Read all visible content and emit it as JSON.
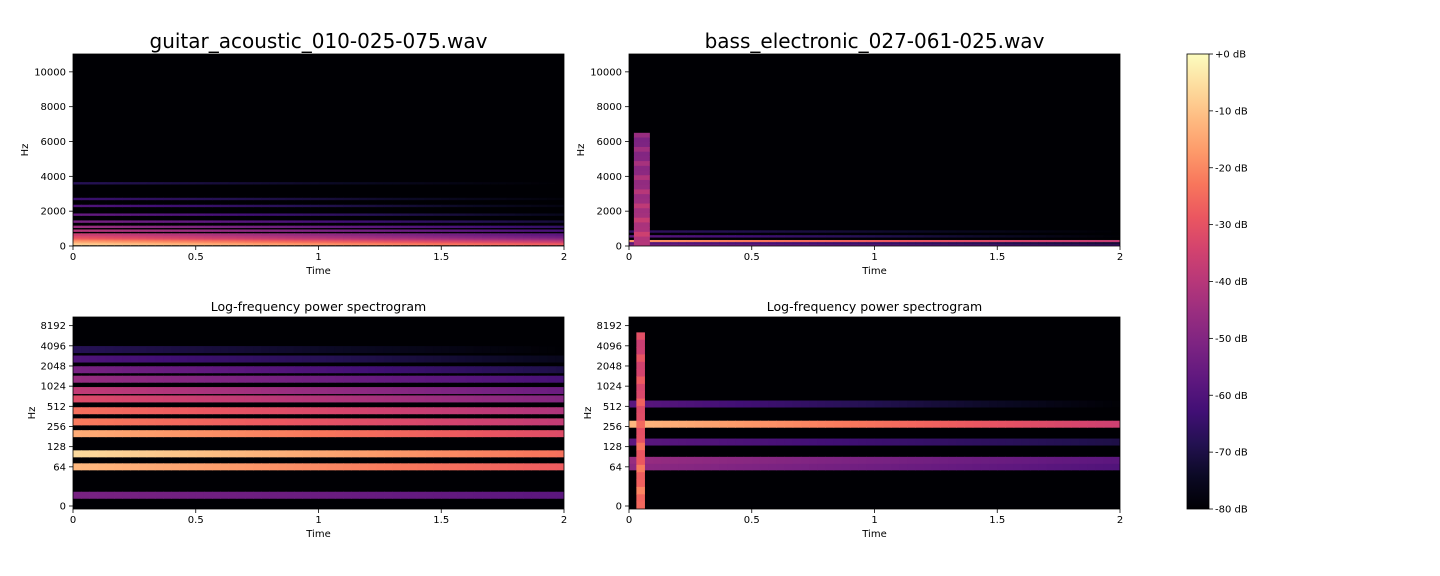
{
  "colors": {
    "magma": [
      "#000004",
      "#0b0924",
      "#231151",
      "#410f75",
      "#5f187f",
      "#7b2382",
      "#982d80",
      "#b73779",
      "#d3436e",
      "#eb5760",
      "#f8765c",
      "#fd9a6a",
      "#febb81",
      "#fddc9e",
      "#fcfdbf"
    ],
    "axis": "#000000"
  },
  "chart_data": [
    {
      "type": "heatmap",
      "title": "guitar_acoustic_010-025-075.wav",
      "xlabel": "Time",
      "ylabel": "Hz",
      "xlim": [
        0,
        2
      ],
      "ylim": [
        0,
        11025
      ],
      "yscale": "linear",
      "xticks": [
        0,
        0.5,
        1,
        1.5,
        2
      ],
      "xtick_labels": [
        "0",
        "0.5",
        "1",
        "1.5",
        "2"
      ],
      "yticks": [
        0,
        2000,
        4000,
        6000,
        8000,
        10000
      ],
      "ytick_labels": [
        "0",
        "2000",
        "4000",
        "6000",
        "8000",
        "10000"
      ],
      "bands": [
        {
          "freq": 110,
          "db_start": -8,
          "db_end": -28
        },
        {
          "freq": 220,
          "db_start": -14,
          "db_end": -35
        },
        {
          "freq": 330,
          "db_start": -20,
          "db_end": -42
        },
        {
          "freq": 440,
          "db_start": -28,
          "db_end": -50
        },
        {
          "freq": 550,
          "db_start": -32,
          "db_end": -55
        },
        {
          "freq": 660,
          "db_start": -36,
          "db_end": -58
        },
        {
          "freq": 880,
          "db_start": -40,
          "db_end": -62
        },
        {
          "freq": 1100,
          "db_start": -45,
          "db_end": -66
        },
        {
          "freq": 1400,
          "db_start": -52,
          "db_end": -72
        },
        {
          "freq": 1800,
          "db_start": -56,
          "db_end": -76
        },
        {
          "freq": 2300,
          "db_start": -60,
          "db_end": -78
        },
        {
          "freq": 2700,
          "db_start": -64,
          "db_end": -79
        },
        {
          "freq": 3600,
          "db_start": -68,
          "db_end": -80
        }
      ],
      "onset": null
    },
    {
      "type": "heatmap",
      "title": "bass_electronic_027-061-025.wav",
      "xlabel": "Time",
      "ylabel": "Hz",
      "xlim": [
        0,
        2
      ],
      "ylim": [
        0,
        11025
      ],
      "yscale": "linear",
      "xticks": [
        0,
        0.5,
        1,
        1.5,
        2
      ],
      "xtick_labels": [
        "0",
        "0.5",
        "1",
        "1.5",
        "2"
      ],
      "yticks": [
        0,
        2000,
        4000,
        6000,
        8000,
        10000
      ],
      "ytick_labels": [
        "0",
        "2000",
        "4000",
        "6000",
        "8000",
        "10000"
      ],
      "bands": [
        {
          "freq": 277,
          "db_start": -18,
          "db_end": -38
        },
        {
          "freq": 80,
          "db_start": -48,
          "db_end": -62
        },
        {
          "freq": 150,
          "db_start": -58,
          "db_end": -72
        },
        {
          "freq": 554,
          "db_start": -58,
          "db_end": -80
        },
        {
          "freq": 831,
          "db_start": -66,
          "db_end": -80
        }
      ],
      "onset": {
        "t_start": 0.02,
        "t_end": 0.085,
        "f_top": 6500,
        "db": -40
      }
    },
    {
      "type": "heatmap",
      "title": "Log-frequency power spectrogram",
      "xlabel": "Time",
      "ylabel": "Hz",
      "xlim": [
        0,
        2
      ],
      "ylim": [
        0,
        11025
      ],
      "yscale": "log2",
      "xticks": [
        0,
        0.5,
        1,
        1.5,
        2
      ],
      "xtick_labels": [
        "0",
        "0.5",
        "1",
        "1.5",
        "2"
      ],
      "yticks": [
        0,
        64,
        128,
        256,
        512,
        1024,
        2048,
        4096,
        8192
      ],
      "ytick_labels": [
        "0",
        "64",
        "128",
        "256",
        "512",
        "1024",
        "2048",
        "4096",
        "8192"
      ],
      "bands": [
        {
          "freq": 20,
          "db_start": -52,
          "db_end": -58
        },
        {
          "freq": 64,
          "db_start": -12,
          "db_end": -28
        },
        {
          "freq": 100,
          "db_start": -6,
          "db_end": -24
        },
        {
          "freq": 200,
          "db_start": -14,
          "db_end": -32
        },
        {
          "freq": 300,
          "db_start": -22,
          "db_end": -38
        },
        {
          "freq": 440,
          "db_start": -24,
          "db_end": -42
        },
        {
          "freq": 660,
          "db_start": -32,
          "db_end": -50
        },
        {
          "freq": 880,
          "db_start": -38,
          "db_end": -55
        },
        {
          "freq": 1300,
          "db_start": -46,
          "db_end": -62
        },
        {
          "freq": 1800,
          "db_start": -52,
          "db_end": -70
        },
        {
          "freq": 2600,
          "db_start": -60,
          "db_end": -76
        },
        {
          "freq": 3600,
          "db_start": -68,
          "db_end": -80
        }
      ],
      "onset": null
    },
    {
      "type": "heatmap",
      "title": "Log-frequency power spectrogram",
      "xlabel": "Time",
      "ylabel": "Hz",
      "xlim": [
        0,
        2
      ],
      "ylim": [
        0,
        11025
      ],
      "yscale": "log2",
      "xticks": [
        0,
        0.5,
        1,
        1.5,
        2
      ],
      "xtick_labels": [
        "0",
        "0.5",
        "1",
        "1.5",
        "2"
      ],
      "yticks": [
        0,
        64,
        128,
        256,
        512,
        1024,
        2048,
        4096,
        8192
      ],
      "ytick_labels": [
        "0",
        "64",
        "128",
        "256",
        "512",
        "1024",
        "2048",
        "4096",
        "8192"
      ],
      "bands": [
        {
          "freq": 277,
          "db_start": -12,
          "db_end": -36
        },
        {
          "freq": 64,
          "db_start": -48,
          "db_end": -60
        },
        {
          "freq": 80,
          "db_start": -46,
          "db_end": -58
        },
        {
          "freq": 150,
          "db_start": -58,
          "db_end": -70
        },
        {
          "freq": 554,
          "db_start": -58,
          "db_end": -80
        }
      ],
      "onset": {
        "t_start": 0.03,
        "t_end": 0.065,
        "f_top": 6500,
        "db": -25
      }
    }
  ],
  "colorbar": {
    "ticks": [
      0,
      -10,
      -20,
      -30,
      -40,
      -50,
      -60,
      -70,
      -80
    ],
    "tick_labels": [
      "+0 dB",
      "-10 dB",
      "-20 dB",
      "-30 dB",
      "-40 dB",
      "-50 dB",
      "-60 dB",
      "-70 dB",
      "-80 dB"
    ],
    "range": [
      -80,
      0
    ]
  }
}
